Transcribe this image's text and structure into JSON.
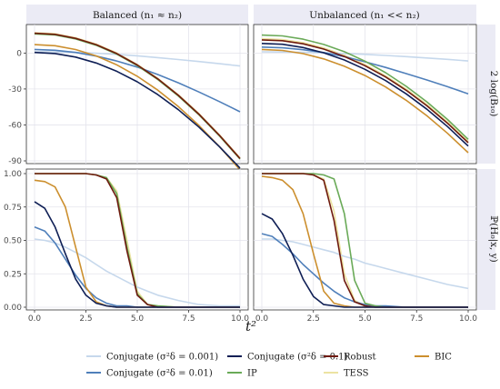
{
  "figure": {
    "col_strips": [
      "Balanced (n₁ ≈ n₂)",
      "Unbalanced (n₁ << n₂)"
    ],
    "row_strips": [
      "2 log(B₁₀)",
      "ℙ(H₀|x, y)"
    ],
    "xlabel": "t²"
  },
  "legend": [
    {
      "label": "Conjugate (σ²δ = 0.001)",
      "color": "#c6d8ec"
    },
    {
      "label": "Conjugate (σ²δ = 0.01)",
      "color": "#4f7fba"
    },
    {
      "label": "Conjugate (σ²δ = 0.1)",
      "color": "#0f1f55"
    },
    {
      "label": "IP",
      "color": "#6aaa58"
    },
    {
      "label": "Robust",
      "color": "#6e1a0e"
    },
    {
      "label": "TESS",
      "color": "#ece3a2"
    },
    {
      "label": "BIC",
      "color": "#cc8f2e"
    }
  ],
  "chart_data": [
    {
      "type": "line",
      "panel": "top-left",
      "title": "Balanced (n₁ ≈ n₂)",
      "ylabel": "2 log(B₁₀)",
      "xlim": [
        0,
        10
      ],
      "ylim": [
        -90,
        20
      ],
      "x_ticks": [
        "0.0",
        "2.5",
        "5.0",
        "7.5",
        "10.0"
      ],
      "y_ticks": [
        "0",
        "-30",
        "-60",
        "-90"
      ],
      "x": [
        0,
        1,
        2,
        3,
        4,
        5,
        6,
        7,
        8,
        9,
        10
      ],
      "series": [
        {
          "name": "Conjugate (σ²δ = 0.001)",
          "values": [
            1,
            0.9,
            0.5,
            -0.2,
            -1.1,
            -2.3,
            -3.8,
            -5.4,
            -7.1,
            -8.9,
            -10.8
          ]
        },
        {
          "name": "Conjugate (σ²δ = 0.01)",
          "values": [
            3,
            2.3,
            0.5,
            -2.5,
            -6.6,
            -11.7,
            -17.9,
            -24.8,
            -32.5,
            -40.5,
            -49
          ]
        },
        {
          "name": "Conjugate (σ²δ = 0.1)",
          "values": [
            0.5,
            -0.4,
            -3.4,
            -8.3,
            -15.2,
            -24,
            -34.7,
            -47.3,
            -61.8,
            -78.2,
            -96
          ]
        },
        {
          "name": "IP",
          "values": [
            16,
            15.1,
            11.8,
            6.5,
            -0.9,
            -10.5,
            -22.1,
            -35.8,
            -51.5,
            -69.2,
            -88.5
          ]
        },
        {
          "name": "Robust",
          "values": [
            16.5,
            15.6,
            12.3,
            7,
            -0.4,
            -10,
            -21.6,
            -35.3,
            -51,
            -68.7,
            -88
          ]
        },
        {
          "name": "TESS",
          "values": [
            17,
            16.1,
            12.8,
            7.5,
            0.1,
            -9.5,
            -21.1,
            -34.8,
            -50.5,
            -68.2,
            -87.5
          ]
        },
        {
          "name": "BIC",
          "values": [
            7,
            6.1,
            2.9,
            -2.4,
            -9.8,
            -19.4,
            -31,
            -44.7,
            -60.4,
            -78.1,
            -97.5
          ]
        }
      ]
    },
    {
      "type": "line",
      "panel": "top-right",
      "title": "Unbalanced (n₁ << n₂)",
      "ylabel": "2 log(B₁₀)",
      "xlim": [
        0,
        10
      ],
      "ylim": [
        -90,
        20
      ],
      "x_ticks": [
        "0.0",
        "2.5",
        "5.0",
        "7.5",
        "10.0"
      ],
      "y_ticks": [
        "0",
        "-30",
        "-60",
        "-90"
      ],
      "x": [
        0,
        1,
        2,
        3,
        4,
        5,
        6,
        7,
        8,
        9,
        10
      ],
      "series": [
        {
          "name": "Conjugate (σ²δ = 0.001)",
          "values": [
            1,
            0.9,
            0.6,
            0.2,
            -0.4,
            -1.1,
            -2,
            -3,
            -4.1,
            -5.3,
            -6.6
          ]
        },
        {
          "name": "Conjugate (σ²δ = 0.01)",
          "values": [
            5,
            4.4,
            2.8,
            0.4,
            -3,
            -7.3,
            -12,
            -17.2,
            -22.5,
            -28.1,
            -34
          ]
        },
        {
          "name": "Conjugate (σ²δ = 0.1)",
          "values": [
            8,
            7.3,
            4.6,
            0.2,
            -5.8,
            -13.6,
            -23,
            -34.1,
            -46.9,
            -61.4,
            -77.6
          ]
        },
        {
          "name": "IP",
          "values": [
            15,
            14.3,
            11.6,
            7.2,
            1.1,
            -6.8,
            -16.4,
            -27.8,
            -40.8,
            -55.5,
            -72
          ]
        },
        {
          "name": "Robust",
          "values": [
            11,
            10.3,
            7.7,
            3.3,
            -2.8,
            -10.6,
            -20,
            -31.1,
            -44,
            -58.6,
            -74.8
          ]
        },
        {
          "name": "TESS",
          "values": [
            12,
            11.3,
            8.7,
            4.3,
            -1.8,
            -9.6,
            -19,
            -30.1,
            -43,
            -57.6,
            -73.8
          ]
        },
        {
          "name": "BIC",
          "values": [
            3,
            2.2,
            -0.5,
            -4.9,
            -11,
            -18.8,
            -28.3,
            -39.5,
            -52.4,
            -67,
            -83.2
          ]
        }
      ]
    },
    {
      "type": "line",
      "panel": "bottom-left",
      "ylabel": "ℙ(H₀|x, y)",
      "xlabel": "t²",
      "xlim": [
        0,
        10
      ],
      "ylim": [
        0,
        1
      ],
      "x_ticks": [
        "0.0",
        "2.5",
        "5.0",
        "7.5",
        "10.0"
      ],
      "y_ticks": [
        "0.00",
        "0.25",
        "0.50",
        "0.75",
        "1.00"
      ],
      "x": [
        0,
        0.5,
        1,
        1.5,
        2,
        2.5,
        3,
        3.5,
        4,
        4.5,
        5,
        5.5,
        6,
        7,
        8,
        9,
        10
      ],
      "series": [
        {
          "name": "Conjugate (σ²δ = 0.001)",
          "values": [
            0.51,
            0.5,
            0.48,
            0.45,
            0.41,
            0.37,
            0.32,
            0.27,
            0.23,
            0.19,
            0.15,
            0.12,
            0.09,
            0.05,
            0.02,
            0.01,
            0.01
          ]
        },
        {
          "name": "Conjugate (σ²δ = 0.01)",
          "values": [
            0.6,
            0.57,
            0.48,
            0.36,
            0.24,
            0.14,
            0.07,
            0.03,
            0.01,
            0.01,
            0,
            0,
            0,
            0,
            0,
            0,
            0
          ]
        },
        {
          "name": "Conjugate (σ²δ = 0.1)",
          "values": [
            0.79,
            0.74,
            0.6,
            0.4,
            0.21,
            0.09,
            0.03,
            0.01,
            0,
            0,
            0,
            0,
            0,
            0,
            0,
            0,
            0
          ]
        },
        {
          "name": "IP",
          "values": [
            1,
            1,
            1,
            1,
            1,
            1,
            0.99,
            0.97,
            0.85,
            0.45,
            0.1,
            0.02,
            0.01,
            0,
            0,
            0,
            0
          ]
        },
        {
          "name": "Robust",
          "values": [
            1,
            1,
            1,
            1,
            1,
            1,
            0.99,
            0.96,
            0.82,
            0.42,
            0.09,
            0.02,
            0,
            0,
            0,
            0,
            0
          ]
        },
        {
          "name": "TESS",
          "values": [
            1,
            1,
            1,
            1,
            1,
            1,
            0.99,
            0.97,
            0.87,
            0.5,
            0.12,
            0.02,
            0.01,
            0,
            0,
            0,
            0
          ]
        },
        {
          "name": "BIC",
          "values": [
            0.95,
            0.94,
            0.9,
            0.75,
            0.45,
            0.15,
            0.04,
            0.01,
            0,
            0,
            0,
            0,
            0,
            0,
            0,
            0,
            0
          ]
        }
      ]
    },
    {
      "type": "line",
      "panel": "bottom-right",
      "ylabel": "ℙ(H₀|x, y)",
      "xlabel": "t²",
      "xlim": [
        0,
        10
      ],
      "ylim": [
        0,
        1
      ],
      "x_ticks": [
        "0.0",
        "2.5",
        "5.0",
        "7.5",
        "10.0"
      ],
      "y_ticks": [
        "0.00",
        "0.25",
        "0.50",
        "0.75",
        "1.00"
      ],
      "x": [
        0,
        0.5,
        1,
        1.5,
        2,
        2.5,
        3,
        3.5,
        4,
        4.5,
        5,
        5.5,
        6,
        7,
        8,
        9,
        10
      ],
      "series": [
        {
          "name": "Conjugate (σ²δ = 0.001)",
          "values": [
            0.51,
            0.51,
            0.5,
            0.49,
            0.47,
            0.45,
            0.43,
            0.41,
            0.38,
            0.36,
            0.33,
            0.31,
            0.29,
            0.25,
            0.21,
            0.17,
            0.14
          ]
        },
        {
          "name": "Conjugate (σ²δ = 0.01)",
          "values": [
            0.55,
            0.53,
            0.47,
            0.4,
            0.32,
            0.25,
            0.18,
            0.12,
            0.07,
            0.04,
            0.02,
            0.01,
            0.01,
            0,
            0,
            0,
            0
          ]
        },
        {
          "name": "Conjugate (σ²δ = 0.1)",
          "values": [
            0.7,
            0.66,
            0.55,
            0.39,
            0.21,
            0.08,
            0.02,
            0.01,
            0,
            0,
            0,
            0,
            0,
            0,
            0,
            0,
            0
          ]
        },
        {
          "name": "IP",
          "values": [
            1,
            1,
            1,
            1,
            1,
            1,
            0.99,
            0.96,
            0.7,
            0.2,
            0.03,
            0.01,
            0,
            0,
            0,
            0,
            0
          ]
        },
        {
          "name": "Robust",
          "values": [
            1,
            1,
            1,
            1,
            1,
            0.99,
            0.95,
            0.65,
            0.2,
            0.04,
            0.01,
            0,
            0,
            0,
            0,
            0,
            0
          ]
        },
        {
          "name": "TESS",
          "values": [
            1,
            1,
            1,
            1,
            1,
            0.99,
            0.96,
            0.72,
            0.25,
            0.05,
            0.01,
            0,
            0,
            0,
            0,
            0,
            0
          ]
        },
        {
          "name": "BIC",
          "values": [
            0.98,
            0.97,
            0.95,
            0.88,
            0.7,
            0.4,
            0.12,
            0.03,
            0.01,
            0,
            0,
            0,
            0,
            0,
            0,
            0,
            0
          ]
        }
      ]
    }
  ]
}
